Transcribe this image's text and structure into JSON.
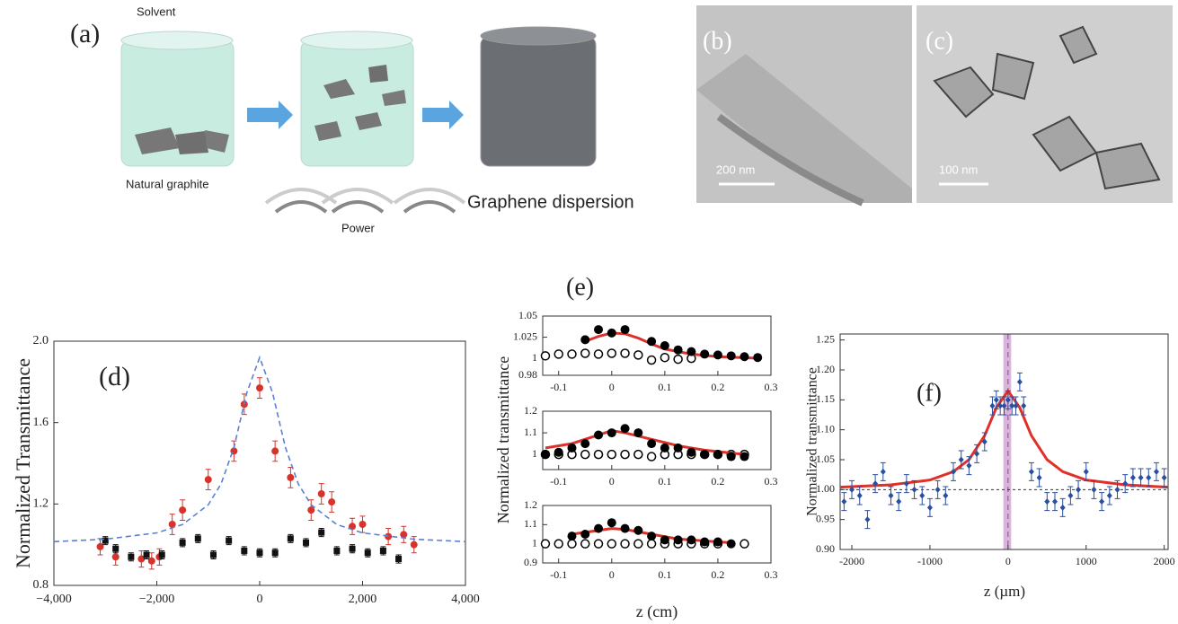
{
  "panels": {
    "a": {
      "label": "(a)",
      "solvent": "Solvent",
      "natural_graphite": "Natural graphite",
      "power": "Power",
      "result": "Graphene dispersion"
    },
    "b": {
      "label": "(b)",
      "scale": "200 nm"
    },
    "c": {
      "label": "(c)",
      "scale": "100 nm"
    }
  },
  "chart_data": [
    {
      "type": "scatter",
      "label": "(d)",
      "ylabel": "Normalized Transmittance",
      "xlim": [
        -4000,
        4000
      ],
      "xticks": [
        {
          "value": -4000,
          "label": "−4,000"
        },
        {
          "value": -2000,
          "label": "−2,000"
        },
        0,
        {
          "value": 2000,
          "label": "2,000"
        },
        {
          "value": 4000,
          "label": "4,000"
        }
      ],
      "ylim": [
        0.8,
        2.0
      ],
      "yticks": [
        0.8,
        1.2,
        1.6,
        {
          "value": 2,
          "label": "2.0"
        }
      ],
      "series": [
        {
          "marker": "circle",
          "color": "#d9322b",
          "x": [
            -3100,
            -2800,
            -2300,
            -2100,
            -1950,
            -1700,
            -1500,
            -1000,
            -500,
            -300,
            0,
            300,
            600,
            1000,
            1200,
            1400,
            1800,
            2000,
            2500,
            2800,
            3000
          ],
          "values": [
            0.99,
            0.94,
            0.93,
            0.92,
            0.94,
            1.1,
            1.17,
            1.32,
            1.46,
            1.69,
            1.77,
            1.46,
            1.33,
            1.17,
            1.25,
            1.21,
            1.09,
            1.1,
            1.04,
            1.05,
            1.0
          ],
          "errors": [
            0.04,
            0.04,
            0.04,
            0.04,
            0.04,
            0.05,
            0.05,
            0.05,
            0.05,
            0.05,
            0.05,
            0.05,
            0.05,
            0.05,
            0.05,
            0.05,
            0.04,
            0.04,
            0.04,
            0.04,
            0.04
          ]
        },
        {
          "marker": "square",
          "color": "#111111",
          "x": [
            -3000,
            -2800,
            -2500,
            -2200,
            -1900,
            -1500,
            -1200,
            -900,
            -600,
            -300,
            0,
            300,
            600,
            900,
            1200,
            1500,
            1800,
            2100,
            2400,
            2700
          ],
          "values": [
            1.02,
            0.98,
            0.94,
            0.95,
            0.95,
            1.01,
            1.03,
            0.95,
            1.02,
            0.97,
            0.96,
            0.96,
            1.03,
            1.01,
            1.06,
            0.97,
            0.98,
            0.96,
            0.97,
            0.93
          ],
          "errors": [
            0.02,
            0.02,
            0.02,
            0.02,
            0.02,
            0.02,
            0.02,
            0.02,
            0.02,
            0.02,
            0.02,
            0.02,
            0.02,
            0.02,
            0.02,
            0.02,
            0.02,
            0.02,
            0.02,
            0.02
          ]
        },
        {
          "marker": "dashed-line",
          "color": "#5b7fd6",
          "x": [
            -4000,
            -3000,
            -2000,
            -1500,
            -1000,
            -750,
            -500,
            -250,
            0,
            250,
            500,
            750,
            1000,
            1500,
            2000,
            3000,
            4000
          ],
          "values": [
            1.015,
            1.027,
            1.058,
            1.099,
            1.196,
            1.299,
            1.478,
            1.747,
            1.92,
            1.747,
            1.478,
            1.299,
            1.196,
            1.099,
            1.058,
            1.027,
            1.015
          ]
        }
      ]
    },
    {
      "type": "scatter",
      "label": "(e)",
      "xlim": [
        -0.13,
        0.3
      ],
      "xticks": [
        -0.1,
        0,
        0.1,
        0.2,
        0.3
      ],
      "ylim": [
        0.98,
        1.05
      ],
      "yticks": [
        0.98,
        1,
        1.025,
        1.05
      ],
      "series": [
        {
          "marker": "open-circle",
          "color": "#000000",
          "x": [
            -0.125,
            -0.1,
            -0.075,
            -0.05,
            -0.025,
            0,
            0.025,
            0.05,
            0.075,
            0.1,
            0.125,
            0.15
          ],
          "values": [
            1.003,
            1.005,
            1.005,
            1.006,
            1.005,
            1.006,
            1.006,
            1.004,
            0.998,
            1.001,
            0.999,
            1.0
          ]
        },
        {
          "marker": "line",
          "color": "#d9322b",
          "x": [
            -0.05,
            -0.025,
            0,
            0.025,
            0.05,
            0.075,
            0.1,
            0.15,
            0.2,
            0.28
          ],
          "values": [
            1.02,
            1.026,
            1.03,
            1.029,
            1.024,
            1.017,
            1.011,
            1.005,
            1.002,
            1.0
          ]
        },
        {
          "marker": "filled-circle",
          "color": "#000000",
          "x": [
            -0.05,
            -0.025,
            0,
            0.025,
            0.075,
            0.1,
            0.125,
            0.15,
            0.175,
            0.2,
            0.225,
            0.25,
            0.275
          ],
          "values": [
            1.022,
            1.034,
            1.03,
            1.034,
            1.02,
            1.015,
            1.01,
            1.008,
            1.005,
            1.004,
            1.003,
            1.002,
            1.001
          ]
        }
      ]
    },
    {
      "type": "scatter",
      "ylabel": "Normalized transmittance",
      "xlim": [
        -0.13,
        0.3
      ],
      "xticks": [
        -0.1,
        0,
        0.1,
        0.2,
        0.3
      ],
      "ylim": [
        0.93,
        1.2
      ],
      "yticks": [
        1,
        1.1,
        1.2
      ],
      "series": [
        {
          "marker": "open-circle",
          "color": "#000000",
          "x": [
            -0.125,
            -0.1,
            -0.075,
            -0.05,
            -0.025,
            0,
            0.025,
            0.05,
            0.075,
            0.1,
            0.125,
            0.15,
            0.175,
            0.2,
            0.225,
            0.25
          ],
          "values": [
            1.0,
            1.0,
            1.0,
            1.0,
            1.0,
            1.0,
            1.0,
            1.0,
            0.99,
            1.0,
            1.0,
            1.0,
            1.0,
            1.0,
            1.0,
            1.0
          ]
        },
        {
          "marker": "line",
          "color": "#d9322b",
          "x": [
            -0.125,
            -0.075,
            -0.025,
            0,
            0.025,
            0.075,
            0.125,
            0.175,
            0.25
          ],
          "values": [
            1.03,
            1.05,
            1.09,
            1.11,
            1.1,
            1.07,
            1.04,
            1.02,
            1.0
          ]
        },
        {
          "marker": "filled-circle",
          "color": "#000000",
          "x": [
            -0.125,
            -0.1,
            -0.075,
            -0.05,
            -0.025,
            0,
            0.025,
            0.05,
            0.075,
            0.1,
            0.125,
            0.15,
            0.175,
            0.2,
            0.225,
            0.25
          ],
          "values": [
            1.0,
            1.01,
            1.03,
            1.05,
            1.09,
            1.1,
            1.12,
            1.1,
            1.05,
            1.03,
            1.03,
            1.01,
            1.0,
            1.0,
            0.99,
            0.99
          ]
        }
      ]
    },
    {
      "type": "scatter",
      "xlabel": "z (cm)",
      "xlim": [
        -0.13,
        0.3
      ],
      "xticks": [
        -0.1,
        0,
        0.1,
        0.2,
        0.3
      ],
      "ylim": [
        0.9,
        1.2
      ],
      "yticks": [
        0.9,
        1,
        1.1,
        1.2
      ],
      "series": [
        {
          "marker": "open-circle",
          "color": "#000000",
          "x": [
            -0.125,
            -0.1,
            -0.075,
            -0.05,
            -0.025,
            0,
            0.025,
            0.05,
            0.075,
            0.1,
            0.125,
            0.15,
            0.175,
            0.2,
            0.25
          ],
          "values": [
            1,
            1,
            1,
            1,
            1,
            1,
            1,
            1,
            1,
            1,
            1,
            1,
            1,
            1,
            1
          ]
        },
        {
          "marker": "line",
          "color": "#d9322b",
          "x": [
            -0.075,
            -0.025,
            0,
            0.025,
            0.075,
            0.125,
            0.2,
            0.23
          ],
          "values": [
            1.05,
            1.07,
            1.08,
            1.075,
            1.05,
            1.025,
            1.01,
            1.005
          ]
        },
        {
          "marker": "filled-circle",
          "color": "#000000",
          "x": [
            -0.075,
            -0.05,
            -0.025,
            0,
            0.025,
            0.05,
            0.075,
            0.1,
            0.125,
            0.15,
            0.175,
            0.2,
            0.225
          ],
          "values": [
            1.04,
            1.05,
            1.08,
            1.11,
            1.08,
            1.07,
            1.04,
            1.02,
            1.02,
            1.02,
            1.01,
            1.01,
            1.0
          ]
        }
      ]
    },
    {
      "type": "scatter",
      "label": "(f)",
      "xlabel": "z (µm)",
      "ylabel": "Normalized transmittance",
      "xlim": [
        -2150,
        2050
      ],
      "xticks": [
        -2000,
        -1000,
        0,
        1000,
        2000
      ],
      "ylim": [
        0.9,
        1.26
      ],
      "yticks": [
        {
          "value": 0.9,
          "label": "0.90"
        },
        0.95,
        {
          "value": 1,
          "label": "1.00"
        },
        1.05,
        {
          "value": 1.1,
          "label": "1.10"
        },
        1.15,
        {
          "value": 1.2,
          "label": "1.20"
        },
        1.25
      ],
      "highlight_band": [
        -60,
        40
      ],
      "vline": 0,
      "reference_line": 1,
      "series": [
        {
          "marker": "line",
          "color": "#e0302a",
          "x": [
            -2150,
            -1500,
            -1000,
            -700,
            -500,
            -300,
            -150,
            0,
            150,
            300,
            500,
            700,
            1000,
            1500,
            2050
          ],
          "values": [
            1.004,
            1.008,
            1.016,
            1.03,
            1.05,
            1.09,
            1.137,
            1.165,
            1.137,
            1.09,
            1.05,
            1.03,
            1.016,
            1.008,
            1.004
          ]
        },
        {
          "marker": "diamond",
          "color": "#2a4fa0",
          "x": [
            -2100,
            -2000,
            -1900,
            -1800,
            -1700,
            -1600,
            -1500,
            -1400,
            -1300,
            -1200,
            -1100,
            -1000,
            -900,
            -800,
            -700,
            -600,
            -500,
            -400,
            -300,
            -200,
            -150,
            -100,
            -50,
            0,
            50,
            100,
            150,
            200,
            300,
            400,
            500,
            600,
            700,
            800,
            900,
            1000,
            1100,
            1200,
            1300,
            1400,
            1500,
            1600,
            1700,
            1800,
            1900,
            2000
          ],
          "values": [
            0.98,
            1.0,
            0.99,
            0.95,
            1.01,
            1.03,
            0.99,
            0.98,
            1.01,
            1.0,
            0.99,
            0.97,
            1.0,
            0.99,
            1.03,
            1.05,
            1.04,
            1.06,
            1.08,
            1.14,
            1.15,
            1.14,
            1.14,
            1.15,
            1.14,
            1.14,
            1.18,
            1.14,
            1.03,
            1.02,
            0.98,
            0.98,
            0.97,
            0.99,
            1.0,
            1.03,
            1.0,
            0.98,
            0.99,
            1.0,
            1.01,
            1.02,
            1.02,
            1.02,
            1.03,
            1.02
          ],
          "errors": [
            0.015,
            0.015,
            0.015,
            0.015,
            0.015,
            0.015,
            0.015,
            0.015,
            0.015,
            0.015,
            0.015,
            0.015,
            0.015,
            0.015,
            0.015,
            0.015,
            0.015,
            0.015,
            0.015,
            0.015,
            0.015,
            0.015,
            0.015,
            0.015,
            0.015,
            0.015,
            0.015,
            0.015,
            0.015,
            0.015,
            0.015,
            0.015,
            0.015,
            0.015,
            0.015,
            0.015,
            0.015,
            0.015,
            0.015,
            0.015,
            0.015,
            0.015,
            0.015,
            0.015,
            0.015,
            0.015
          ]
        }
      ]
    }
  ]
}
